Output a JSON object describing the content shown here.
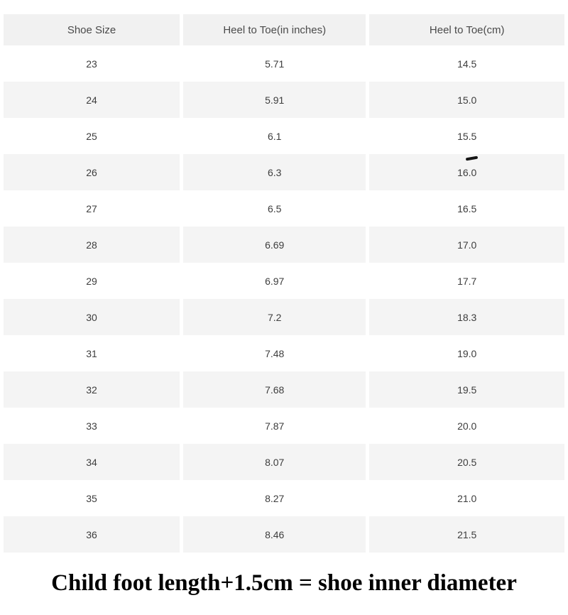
{
  "chart_data": {
    "type": "table",
    "columns": [
      "Shoe Size",
      "Heel to Toe(in inches)",
      "Heel to Toe(cm)"
    ],
    "rows": [
      [
        "23",
        "5.71",
        "14.5"
      ],
      [
        "24",
        "5.91",
        "15.0"
      ],
      [
        "25",
        "6.1",
        "15.5"
      ],
      [
        "26",
        "6.3",
        "16.0"
      ],
      [
        "27",
        "6.5",
        "16.5"
      ],
      [
        "28",
        "6.69",
        "17.0"
      ],
      [
        "29",
        "6.97",
        "17.7"
      ],
      [
        "30",
        "7.2",
        "18.3"
      ],
      [
        "31",
        "7.48",
        "19.0"
      ],
      [
        "32",
        "7.68",
        "19.5"
      ],
      [
        "33",
        "7.87",
        "20.0"
      ],
      [
        "34",
        "8.07",
        "20.5"
      ],
      [
        "35",
        "8.27",
        "21.0"
      ],
      [
        "36",
        "8.46",
        "21.5"
      ]
    ],
    "layout": {
      "stripes": "alternating white and light gray rows",
      "annotation": "small hand-drawn pen dash under the value 15.5 (size 25, cm column)"
    }
  },
  "footer": {
    "note": "Child foot length+1.5cm = shoe inner diameter"
  },
  "colors": {
    "header-bg": "#f1f1f1",
    "header-text": "#4a4a4a",
    "stripe-bg": "#f4f4f4",
    "cell-text": "#3d3d3d",
    "footer-text": "#000000",
    "mark-color": "#151515"
  }
}
